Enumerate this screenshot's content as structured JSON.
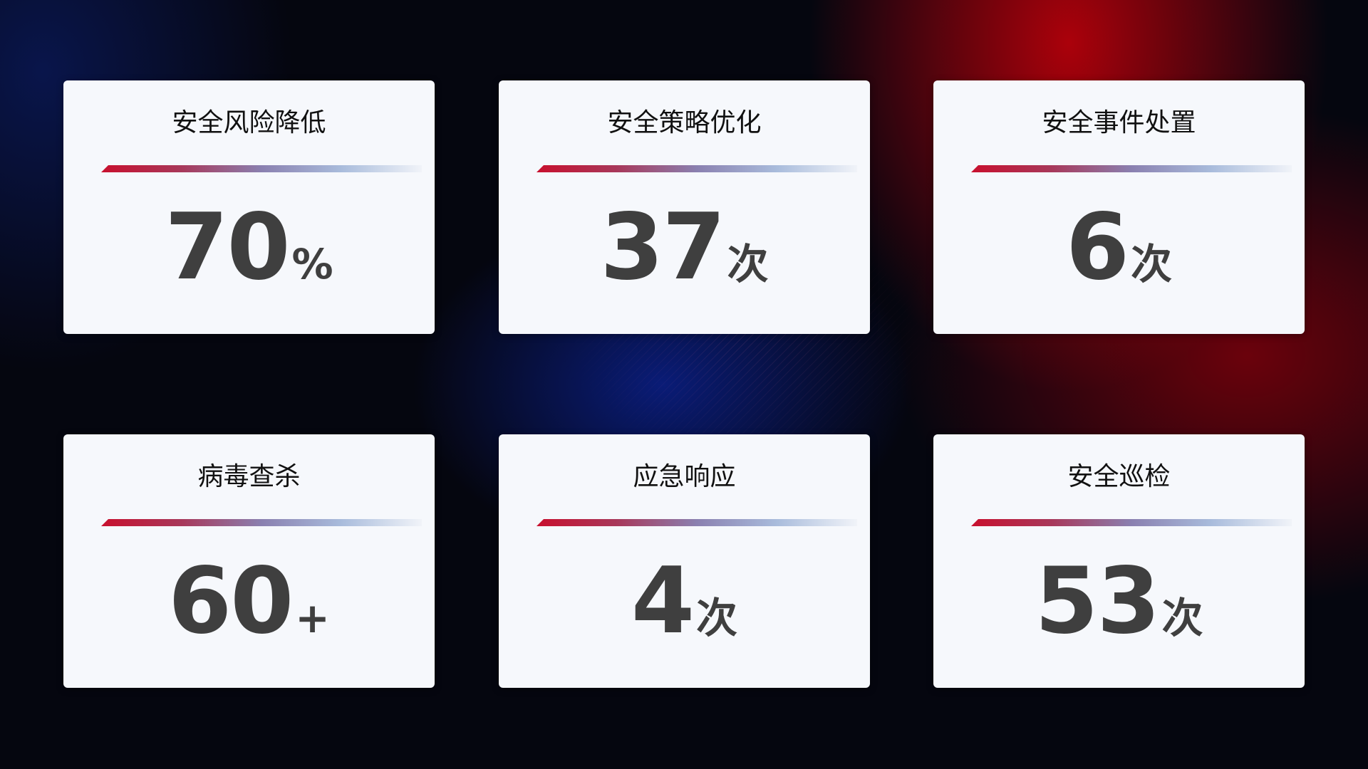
{
  "colors": {
    "accent_red": "#c8102e",
    "accent_blue": "#8a80b0",
    "card_bg": "#f6f8fc",
    "value_text": "#3f3f3f"
  },
  "cards": [
    {
      "title": "安全风险降低",
      "value": "70",
      "unit": "%"
    },
    {
      "title": "安全策略优化",
      "value": "37",
      "unit": "次"
    },
    {
      "title": "安全事件处置",
      "value": "6",
      "unit": "次"
    },
    {
      "title": "病毒查杀",
      "value": "60",
      "unit": "+"
    },
    {
      "title": "应急响应",
      "value": "4",
      "unit": "次"
    },
    {
      "title": "安全巡检",
      "value": "53",
      "unit": "次"
    }
  ]
}
